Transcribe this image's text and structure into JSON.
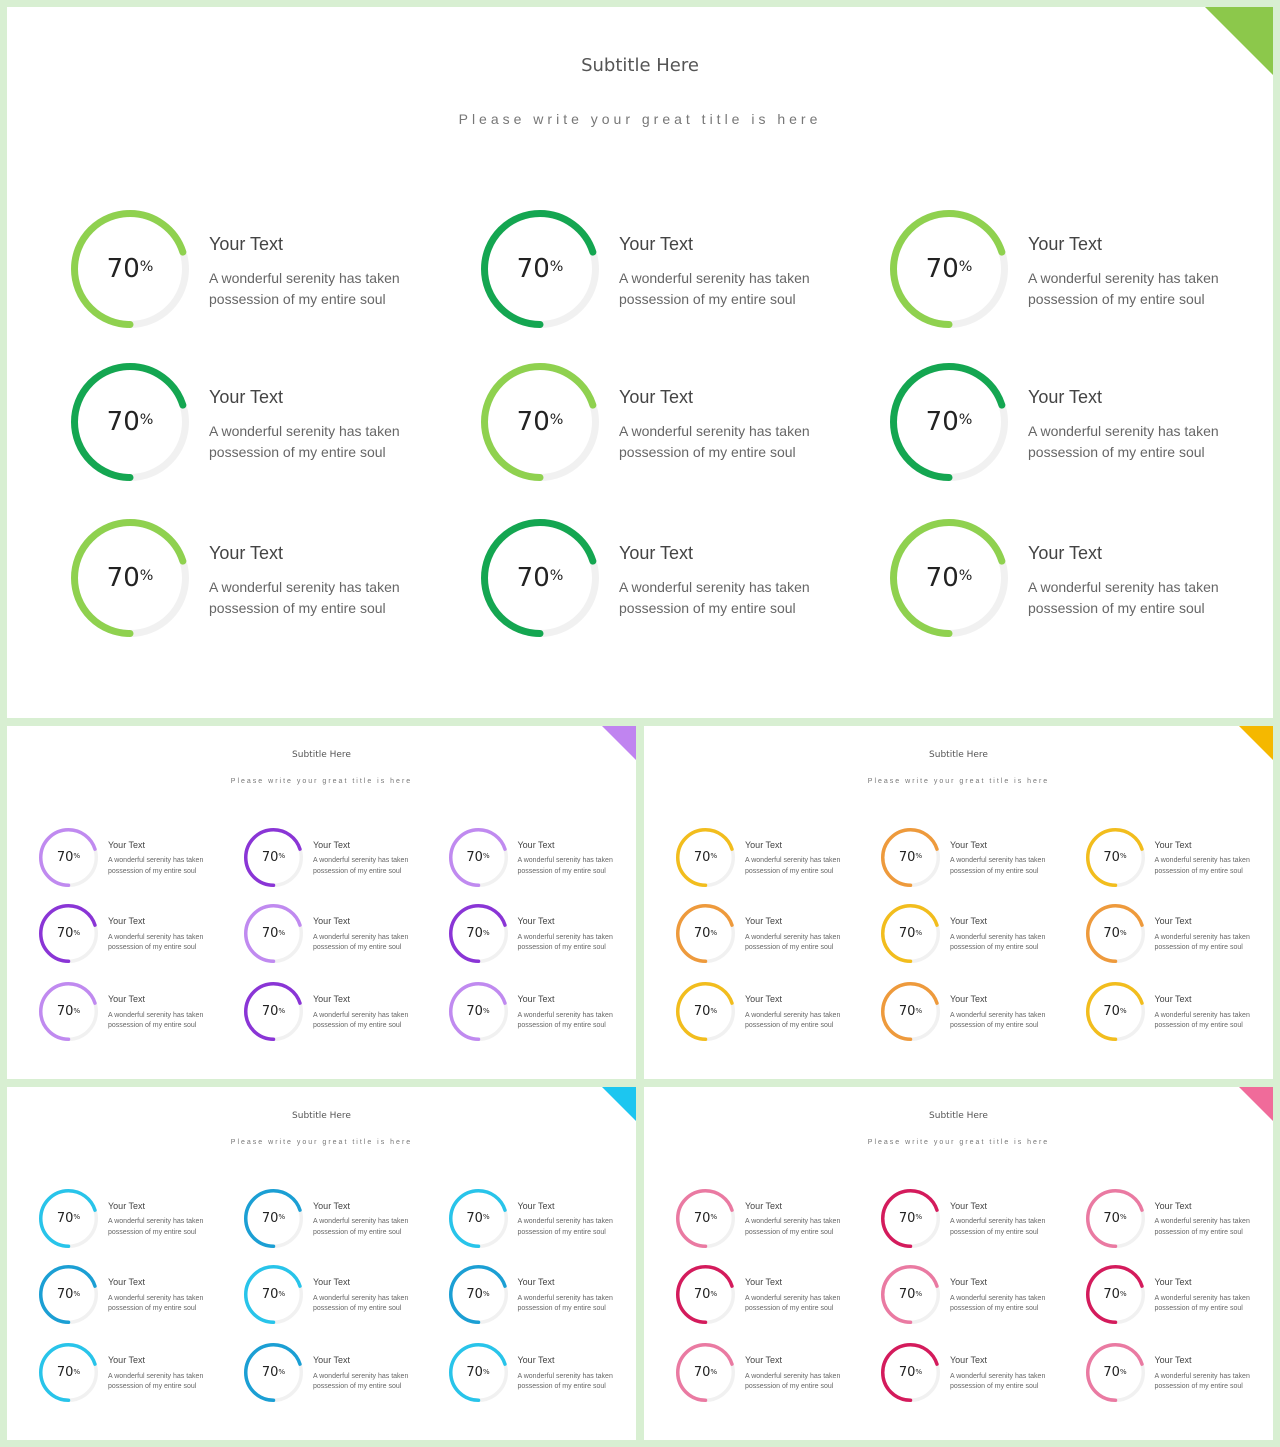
{
  "slides": [
    {
      "title": "Subtitle Here",
      "subtitle": "Please write your great title is here",
      "accent": "#8cc84b",
      "colors": [
        "#8fd14f",
        "#14a651",
        "#8fd14f",
        "#14a651",
        "#8fd14f",
        "#14a651",
        "#8fd14f",
        "#14a651",
        "#8fd14f"
      ],
      "items": [
        {
          "percent": "70",
          "percent_sign": "%",
          "title": "Your Text",
          "desc_line1": "A wonderful serenity has taken",
          "desc_line2": "possession of my entire soul"
        },
        {
          "percent": "70",
          "percent_sign": "%",
          "title": "Your Text",
          "desc_line1": "A wonderful serenity has taken",
          "desc_line2": "possession of my entire soul"
        },
        {
          "percent": "70",
          "percent_sign": "%",
          "title": "Your Text",
          "desc_line1": "A wonderful serenity has taken",
          "desc_line2": "possession of my entire soul"
        },
        {
          "percent": "70",
          "percent_sign": "%",
          "title": "Your Text",
          "desc_line1": "A wonderful serenity has taken",
          "desc_line2": "possession of my entire soul"
        },
        {
          "percent": "70",
          "percent_sign": "%",
          "title": "Your Text",
          "desc_line1": "A wonderful serenity has taken",
          "desc_line2": "possession of my entire soul"
        },
        {
          "percent": "70",
          "percent_sign": "%",
          "title": "Your Text",
          "desc_line1": "A wonderful serenity has taken",
          "desc_line2": "possession of my entire soul"
        },
        {
          "percent": "70",
          "percent_sign": "%",
          "title": "Your Text",
          "desc_line1": "A wonderful serenity has taken",
          "desc_line2": "possession of my entire soul"
        },
        {
          "percent": "70",
          "percent_sign": "%",
          "title": "Your Text",
          "desc_line1": "A wonderful serenity has taken",
          "desc_line2": "possession of my entire soul"
        },
        {
          "percent": "70",
          "percent_sign": "%",
          "title": "Your Text",
          "desc_line1": "A wonderful serenity has taken",
          "desc_line2": "possession of my entire soul"
        }
      ]
    },
    {
      "title": "Subtitle Here",
      "subtitle": "Please write your great title is here",
      "accent": "#c084f0",
      "colors": [
        "#c08af0",
        "#8a35d6",
        "#c08af0",
        "#8a35d6",
        "#c08af0",
        "#8a35d6",
        "#c08af0",
        "#8a35d6",
        "#c08af0"
      ],
      "items": [
        {
          "percent": "70",
          "percent_sign": "%",
          "title": "Your Text",
          "desc_line1": "A wonderful serenity has taken",
          "desc_line2": "possession of my entire soul"
        },
        {
          "percent": "70",
          "percent_sign": "%",
          "title": "Your Text",
          "desc_line1": "A wonderful serenity has taken",
          "desc_line2": "possession of my entire soul"
        },
        {
          "percent": "70",
          "percent_sign": "%",
          "title": "Your Text",
          "desc_line1": "A wonderful serenity has taken",
          "desc_line2": "possession of my entire soul"
        },
        {
          "percent": "70",
          "percent_sign": "%",
          "title": "Your Text",
          "desc_line1": "A wonderful serenity has taken",
          "desc_line2": "possession of my entire soul"
        },
        {
          "percent": "70",
          "percent_sign": "%",
          "title": "Your Text",
          "desc_line1": "A wonderful serenity has taken",
          "desc_line2": "possession of my entire soul"
        },
        {
          "percent": "70",
          "percent_sign": "%",
          "title": "Your Text",
          "desc_line1": "A wonderful serenity has taken",
          "desc_line2": "possession of my entire soul"
        },
        {
          "percent": "70",
          "percent_sign": "%",
          "title": "Your Text",
          "desc_line1": "A wonderful serenity has taken",
          "desc_line2": "possession of my entire soul"
        },
        {
          "percent": "70",
          "percent_sign": "%",
          "title": "Your Text",
          "desc_line1": "A wonderful serenity has taken",
          "desc_line2": "possession of my entire soul"
        },
        {
          "percent": "70",
          "percent_sign": "%",
          "title": "Your Text",
          "desc_line1": "A wonderful serenity has taken",
          "desc_line2": "possession of my entire soul"
        }
      ]
    },
    {
      "title": "Subtitle Here",
      "subtitle": "Please write your great title is here",
      "accent": "#f5b800",
      "colors": [
        "#f2bd1d",
        "#ee9a3c",
        "#f2bd1d",
        "#ee9a3c",
        "#f2bd1d",
        "#ee9a3c",
        "#f2bd1d",
        "#ee9a3c",
        "#f2bd1d"
      ],
      "items": [
        {
          "percent": "70",
          "percent_sign": "%",
          "title": "Your Text",
          "desc_line1": "A wonderful serenity has taken",
          "desc_line2": "possession of my entire soul"
        },
        {
          "percent": "70",
          "percent_sign": "%",
          "title": "Your Text",
          "desc_line1": "A wonderful serenity has taken",
          "desc_line2": "possession of my entire soul"
        },
        {
          "percent": "70",
          "percent_sign": "%",
          "title": "Your Text",
          "desc_line1": "A wonderful serenity has taken",
          "desc_line2": "possession of my entire soul"
        },
        {
          "percent": "70",
          "percent_sign": "%",
          "title": "Your Text",
          "desc_line1": "A wonderful serenity has taken",
          "desc_line2": "possession of my entire soul"
        },
        {
          "percent": "70",
          "percent_sign": "%",
          "title": "Your Text",
          "desc_line1": "A wonderful serenity has taken",
          "desc_line2": "possession of my entire soul"
        },
        {
          "percent": "70",
          "percent_sign": "%",
          "title": "Your Text",
          "desc_line1": "A wonderful serenity has taken",
          "desc_line2": "possession of my entire soul"
        },
        {
          "percent": "70",
          "percent_sign": "%",
          "title": "Your Text",
          "desc_line1": "A wonderful serenity has taken",
          "desc_line2": "possession of my entire soul"
        },
        {
          "percent": "70",
          "percent_sign": "%",
          "title": "Your Text",
          "desc_line1": "A wonderful serenity has taken",
          "desc_line2": "possession of my entire soul"
        },
        {
          "percent": "70",
          "percent_sign": "%",
          "title": "Your Text",
          "desc_line1": "A wonderful serenity has taken",
          "desc_line2": "possession of my entire soul"
        }
      ]
    },
    {
      "title": "Subtitle Here",
      "subtitle": "Please write your great title is here",
      "accent": "#1cc6f0",
      "colors": [
        "#28c4ea",
        "#1b9fd4",
        "#28c4ea",
        "#1b9fd4",
        "#28c4ea",
        "#1b9fd4",
        "#28c4ea",
        "#1b9fd4",
        "#28c4ea"
      ],
      "items": [
        {
          "percent": "70",
          "percent_sign": "%",
          "title": "Your Text",
          "desc_line1": "A wonderful serenity has taken",
          "desc_line2": "possession of my entire soul"
        },
        {
          "percent": "70",
          "percent_sign": "%",
          "title": "Your Text",
          "desc_line1": "A wonderful serenity has taken",
          "desc_line2": "possession of my entire soul"
        },
        {
          "percent": "70",
          "percent_sign": "%",
          "title": "Your Text",
          "desc_line1": "A wonderful serenity has taken",
          "desc_line2": "possession of my entire soul"
        },
        {
          "percent": "70",
          "percent_sign": "%",
          "title": "Your Text",
          "desc_line1": "A wonderful serenity has taken",
          "desc_line2": "possession of my entire soul"
        },
        {
          "percent": "70",
          "percent_sign": "%",
          "title": "Your Text",
          "desc_line1": "A wonderful serenity has taken",
          "desc_line2": "possession of my entire soul"
        },
        {
          "percent": "70",
          "percent_sign": "%",
          "title": "Your Text",
          "desc_line1": "A wonderful serenity has taken",
          "desc_line2": "possession of my entire soul"
        },
        {
          "percent": "70",
          "percent_sign": "%",
          "title": "Your Text",
          "desc_line1": "A wonderful serenity has taken",
          "desc_line2": "possession of my entire soul"
        },
        {
          "percent": "70",
          "percent_sign": "%",
          "title": "Your Text",
          "desc_line1": "A wonderful serenity has taken",
          "desc_line2": "possession of my entire soul"
        },
        {
          "percent": "70",
          "percent_sign": "%",
          "title": "Your Text",
          "desc_line1": "A wonderful serenity has taken",
          "desc_line2": "possession of my entire soul"
        }
      ]
    },
    {
      "title": "Subtitle Here",
      "subtitle": "Please write your great title is here",
      "accent": "#f06b9a",
      "colors": [
        "#ea7aa2",
        "#d41b5c",
        "#ea7aa2",
        "#d41b5c",
        "#ea7aa2",
        "#d41b5c",
        "#ea7aa2",
        "#d41b5c",
        "#ea7aa2"
      ],
      "items": [
        {
          "percent": "70",
          "percent_sign": "%",
          "title": "Your Text",
          "desc_line1": "A wonderful serenity has taken",
          "desc_line2": "possession of my entire soul"
        },
        {
          "percent": "70",
          "percent_sign": "%",
          "title": "Your Text",
          "desc_line1": "A wonderful serenity has taken",
          "desc_line2": "possession of my entire soul"
        },
        {
          "percent": "70",
          "percent_sign": "%",
          "title": "Your Text",
          "desc_line1": "A wonderful serenity has taken",
          "desc_line2": "possession of my entire soul"
        },
        {
          "percent": "70",
          "percent_sign": "%",
          "title": "Your Text",
          "desc_line1": "A wonderful serenity has taken",
          "desc_line2": "possession of my entire soul"
        },
        {
          "percent": "70",
          "percent_sign": "%",
          "title": "Your Text",
          "desc_line1": "A wonderful serenity has taken",
          "desc_line2": "possession of my entire soul"
        },
        {
          "percent": "70",
          "percent_sign": "%",
          "title": "Your Text",
          "desc_line1": "A wonderful serenity has taken",
          "desc_line2": "possession of my entire soul"
        },
        {
          "percent": "70",
          "percent_sign": "%",
          "title": "Your Text",
          "desc_line1": "A wonderful serenity has taken",
          "desc_line2": "possession of my entire soul"
        },
        {
          "percent": "70",
          "percent_sign": "%",
          "title": "Your Text",
          "desc_line1": "A wonderful serenity has taken",
          "desc_line2": "possession of my entire soul"
        },
        {
          "percent": "70",
          "percent_sign": "%",
          "title": "Your Text",
          "desc_line1": "A wonderful serenity has taken",
          "desc_line2": "possession of my entire soul"
        }
      ]
    }
  ]
}
